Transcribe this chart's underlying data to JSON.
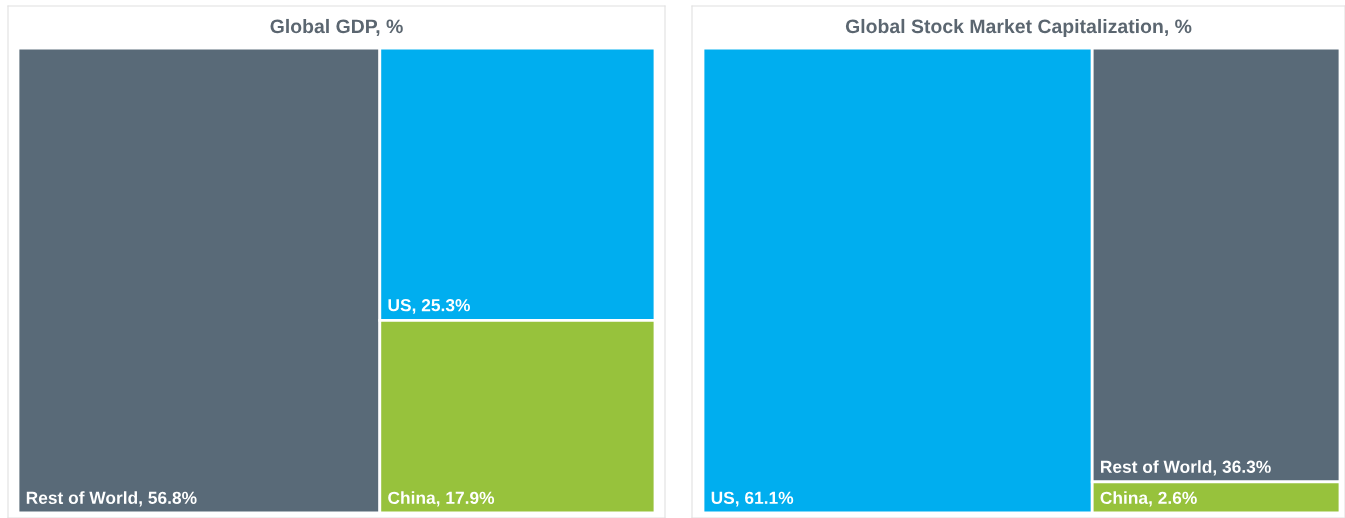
{
  "chart_data": [
    {
      "type": "other",
      "title": "Global GDP, %",
      "categories": [
        "Rest of World",
        "US",
        "China"
      ],
      "values": [
        56.8,
        25.3,
        17.9
      ],
      "value_labels": [
        ", 56.8%",
        ", 25.3%",
        ", 17.9%"
      ],
      "colors": [
        "#596a78",
        "#00aeef",
        "#97c23c"
      ]
    },
    {
      "type": "other",
      "title": "Global Stock Market Capitalization, %",
      "categories": [
        "US",
        "Rest of World",
        "China"
      ],
      "values": [
        61.1,
        36.3,
        2.6
      ],
      "value_labels": [
        ", 61.1%",
        ", 36.3%",
        ", 2.6%"
      ],
      "colors": [
        "#00aeef",
        "#596a78",
        "#97c23c"
      ]
    }
  ]
}
